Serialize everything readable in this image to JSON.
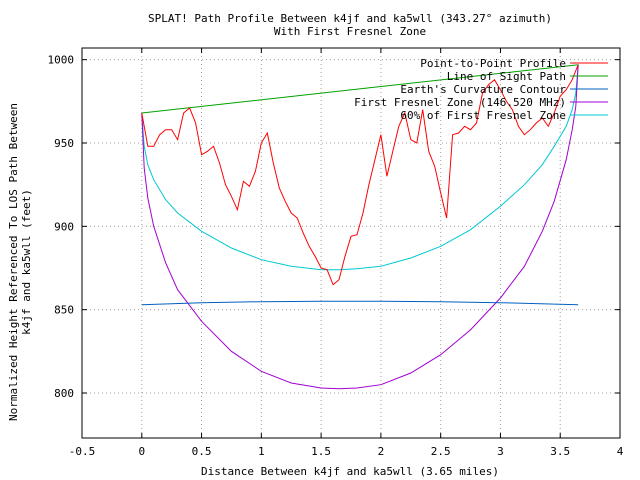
{
  "chart_data": {
    "type": "line",
    "title": "SPLAT! Path Profile Between k4jf and ka5wll (343.27° azimuth)",
    "subtitle": "With First Fresnel Zone",
    "xlabel": "Distance Between k4jf and ka5wll (3.65 miles)",
    "ylabel_line1": "Normalized Height Referenced To LOS Path Between",
    "ylabel_line2": "k4jf and ka5wll (feet)",
    "xlim": [
      -0.5,
      4
    ],
    "ylim": [
      773,
      1007
    ],
    "x_ticks": [
      -0.5,
      0,
      0.5,
      1,
      1.5,
      2,
      2.5,
      3,
      3.5,
      4
    ],
    "x_tick_labels": [
      "-0.5",
      "0",
      "0.5",
      "1",
      "1.5",
      "2",
      "2.5",
      "3",
      "3.5",
      "4"
    ],
    "y_ticks": [
      800,
      850,
      900,
      950,
      1000
    ],
    "y_tick_labels": [
      "800",
      "850",
      "900",
      "950",
      "1000"
    ],
    "grid": true,
    "legend_position": "top-right",
    "series": [
      {
        "name": "Point-to-Point Profile",
        "color": "#ff0000",
        "x": [
          0,
          0.05,
          0.1,
          0.15,
          0.2,
          0.25,
          0.3,
          0.35,
          0.4,
          0.45,
          0.5,
          0.55,
          0.6,
          0.65,
          0.7,
          0.75,
          0.8,
          0.85,
          0.9,
          0.95,
          1.0,
          1.05,
          1.1,
          1.15,
          1.2,
          1.25,
          1.3,
          1.35,
          1.4,
          1.45,
          1.5,
          1.55,
          1.6,
          1.65,
          1.7,
          1.75,
          1.8,
          1.85,
          1.9,
          1.95,
          2.0,
          2.05,
          2.1,
          2.15,
          2.2,
          2.25,
          2.3,
          2.35,
          2.4,
          2.45,
          2.5,
          2.55,
          2.6,
          2.65,
          2.7,
          2.75,
          2.8,
          2.85,
          2.9,
          2.95,
          3.0,
          3.05,
          3.1,
          3.15,
          3.2,
          3.25,
          3.3,
          3.35,
          3.4,
          3.45,
          3.5,
          3.55,
          3.6,
          3.65
        ],
        "values": [
          968,
          948,
          948,
          955,
          958,
          958,
          952,
          968,
          971,
          962,
          943,
          945,
          948,
          938,
          925,
          918,
          910,
          927,
          924,
          933,
          950,
          956,
          938,
          923,
          915,
          908,
          905,
          896,
          888,
          882,
          875,
          874,
          865,
          868,
          882,
          894,
          895,
          908,
          925,
          940,
          955,
          930,
          945,
          960,
          968,
          952,
          950,
          970,
          945,
          936,
          920,
          905,
          955,
          956,
          960,
          958,
          962,
          980,
          985,
          988,
          982,
          975,
          970,
          960,
          955,
          958,
          962,
          965,
          960,
          968,
          978,
          982,
          988,
          997
        ]
      },
      {
        "name": "Line of Sight Path",
        "color": "#00a000",
        "x": [
          0,
          3.65
        ],
        "values": [
          968,
          997
        ]
      },
      {
        "name": "Earth's Curvature Contour",
        "color": "#0060c0",
        "x": [
          0,
          0.5,
          1.0,
          1.5,
          1.825,
          2.0,
          2.5,
          3.0,
          3.65
        ],
        "values": [
          853,
          854.2,
          854.8,
          855,
          855,
          855,
          854.8,
          854.2,
          853
        ]
      },
      {
        "name": "First Fresnel Zone (146.520 MHz)",
        "color": "#a000d0",
        "x": [
          0,
          0.02,
          0.05,
          0.1,
          0.2,
          0.3,
          0.5,
          0.75,
          1.0,
          1.25,
          1.5,
          1.65,
          1.8,
          2.0,
          2.25,
          2.5,
          2.75,
          3.0,
          3.2,
          3.35,
          3.45,
          3.55,
          3.6,
          3.63,
          3.65
        ],
        "values": [
          968,
          935,
          917,
          900,
          878,
          862,
          843,
          825,
          813,
          806,
          803,
          802.5,
          803,
          805,
          812,
          823,
          838,
          857,
          876,
          897,
          915,
          940,
          958,
          972,
          997
        ]
      },
      {
        "name": "60% of First Fresnel Zone",
        "color": "#00c8d0",
        "x": [
          0,
          0.02,
          0.05,
          0.1,
          0.2,
          0.3,
          0.5,
          0.75,
          1.0,
          1.25,
          1.5,
          1.65,
          1.8,
          2.0,
          2.25,
          2.5,
          2.75,
          3.0,
          3.2,
          3.35,
          3.45,
          3.55,
          3.6,
          3.63,
          3.65
        ],
        "values": [
          968,
          948,
          937,
          928,
          916,
          908,
          897,
          887,
          880,
          876,
          874,
          874,
          874.5,
          876,
          881,
          888,
          898,
          912,
          925,
          937,
          948,
          960,
          970,
          980,
          997
        ]
      }
    ]
  }
}
